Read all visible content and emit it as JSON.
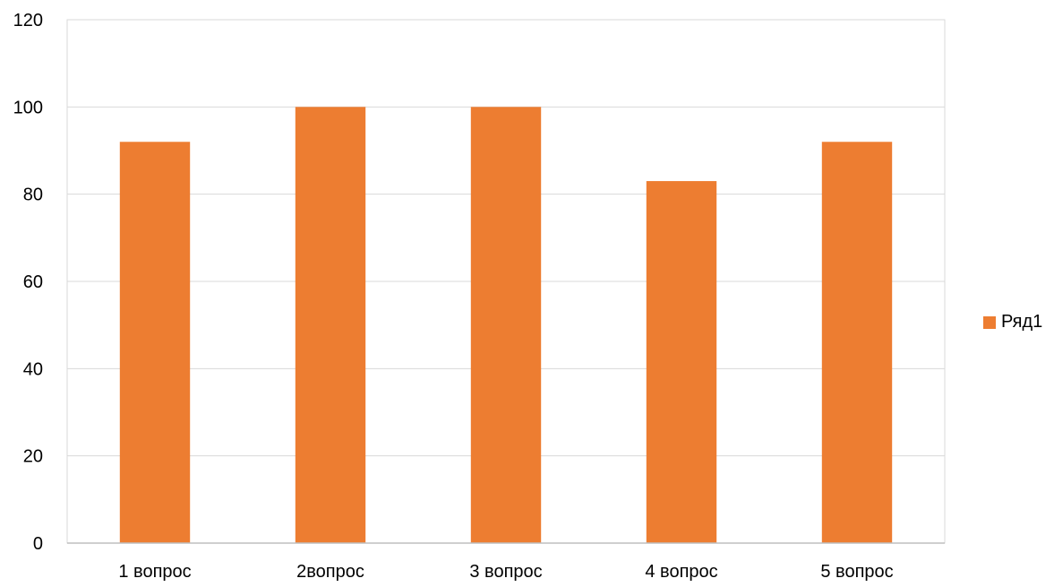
{
  "chart_data": {
    "type": "bar",
    "categories": [
      "1 вопрос",
      "2вопрос",
      "3 вопрос",
      "4 вопрос",
      "5 вопрос"
    ],
    "series": [
      {
        "name": "Ряд1",
        "values": [
          92,
          100,
          100,
          83,
          92
        ],
        "color": "#ED7D31"
      }
    ],
    "ylim": [
      0,
      120
    ],
    "yticks": [
      0,
      20,
      40,
      60,
      80,
      100,
      120
    ],
    "grid": true,
    "legend_position": "right",
    "title": "",
    "xlabel": "",
    "ylabel": ""
  }
}
